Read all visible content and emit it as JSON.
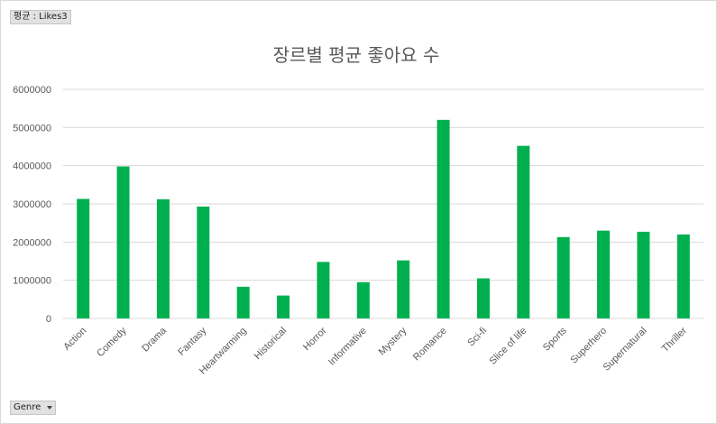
{
  "value_field_button": "평균 : Likes3",
  "axis_field_button": "Genre",
  "colors": {
    "bar": "#00b050",
    "grid": "#d9d9d9"
  },
  "chart_data": {
    "type": "bar",
    "title": "장르별 평균 좋아요 수",
    "xlabel": "",
    "ylabel": "",
    "ylim": [
      0,
      6000000
    ],
    "yticks": [
      0,
      1000000,
      2000000,
      3000000,
      4000000,
      5000000,
      6000000
    ],
    "ytick_labels": [
      "0",
      "1000000",
      "2000000",
      "3000000",
      "4000000",
      "5000000",
      "6000000"
    ],
    "grid": true,
    "legend": "none",
    "categories": [
      "Action",
      "Comedy",
      "Drama",
      "Fantasy",
      "Heartwarming",
      "Historical",
      "Horror",
      "Informative",
      "Mystery",
      "Romance",
      "Sci-fi",
      "Slice of life",
      "Sports",
      "Superhero",
      "Supernatural",
      "Thriller"
    ],
    "values": [
      3130000,
      3980000,
      3120000,
      2930000,
      830000,
      600000,
      1480000,
      950000,
      1520000,
      5200000,
      1050000,
      4520000,
      2130000,
      2300000,
      2270000,
      2200000
    ]
  }
}
